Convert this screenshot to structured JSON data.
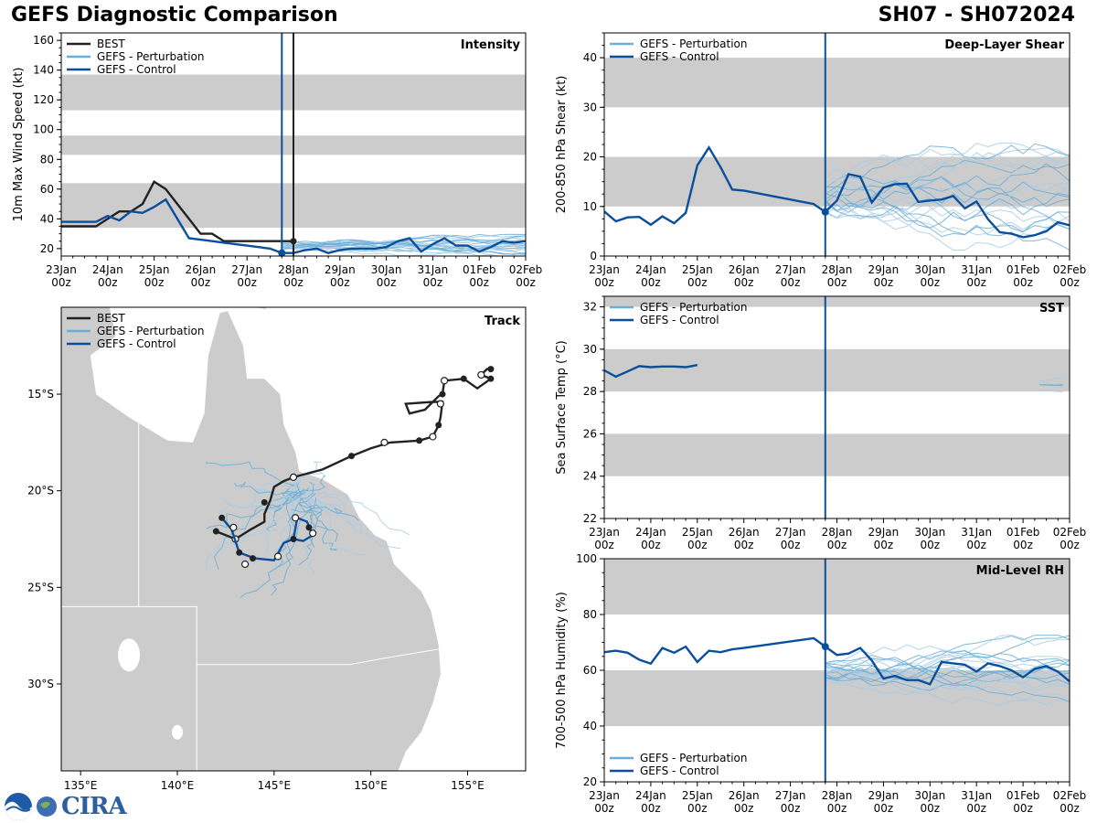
{
  "header": {
    "title": "GEFS Diagnostic Comparison",
    "storm_id": "SH07 - SH072024"
  },
  "logo": {
    "label": "CIRA",
    "agency_seal": "NOAA"
  },
  "time_axis": {
    "tick_labels_day": [
      "23Jan",
      "24Jan",
      "25Jan",
      "26Jan",
      "27Jan",
      "28Jan",
      "29Jan",
      "30Jan",
      "31Jan",
      "01Feb",
      "02Feb"
    ],
    "tick_labels_hour": "00z",
    "init_day": 4.75
  },
  "legend_labels": {
    "best": "BEST",
    "perturbation": "GEFS - Perturbation",
    "control": "GEFS - Control"
  },
  "colors": {
    "best": "#222222",
    "control": "#0b4f9c",
    "perturbation": "#6baed6",
    "perturbation_light": "#a9cde6",
    "band": "#cccccc",
    "land": "#cccccc"
  },
  "chart_data": [
    {
      "id": "intensity",
      "type": "line",
      "title": "Intensity",
      "ylabel": "10m Max Wind Speed (kt)",
      "xlim_days": [
        0,
        10
      ],
      "ylim": [
        15,
        165
      ],
      "yticks": [
        20,
        40,
        60,
        80,
        100,
        120,
        140,
        160
      ],
      "bands": [
        [
          34,
          64
        ],
        [
          83,
          96
        ],
        [
          113,
          137
        ]
      ],
      "legend": [
        "best",
        "perturbation",
        "control"
      ],
      "vlines": [
        {
          "x": 4.75,
          "color": "control"
        },
        {
          "x": 5.0,
          "color": "best"
        }
      ],
      "best": {
        "x": [
          0,
          0.5,
          0.75,
          1.0,
          1.25,
          1.5,
          1.75,
          2.0,
          2.25,
          2.5,
          2.75,
          3.0,
          3.25,
          3.5,
          3.75,
          4.0,
          4.25,
          4.5,
          4.75,
          5.0
        ],
        "y": [
          35,
          35,
          35,
          40,
          45,
          45,
          50,
          65,
          60,
          50,
          40,
          30,
          30,
          25,
          25,
          25,
          25,
          25,
          25,
          25
        ]
      },
      "control": {
        "x": [
          0,
          0.25,
          0.5,
          0.75,
          1.0,
          1.25,
          1.5,
          1.75,
          2.0,
          2.25,
          2.5,
          2.75,
          3.0,
          3.25,
          3.5,
          3.75,
          4.0,
          4.25,
          4.5,
          4.75,
          5.0,
          5.25,
          5.5,
          5.75,
          6.0,
          6.25,
          6.5,
          6.75,
          7.0,
          7.25,
          7.5,
          7.75,
          8.0,
          8.25,
          8.5,
          8.75,
          9.0,
          9.25,
          9.5,
          9.75,
          10.0
        ],
        "y": [
          38,
          38,
          38,
          38,
          42,
          39,
          45,
          44,
          48,
          53,
          40,
          27,
          26,
          25,
          24,
          23,
          22,
          21,
          20,
          17,
          17,
          19,
          20,
          17,
          19,
          20,
          20,
          20,
          21,
          25,
          27,
          18,
          23,
          27,
          22,
          22,
          18,
          21,
          25,
          24,
          25
        ]
      },
      "perturbation_spread": {
        "x_start": 4.75,
        "x_end": 10.0,
        "center": 22,
        "spread": 5,
        "members": 20
      }
    },
    {
      "id": "shear",
      "type": "line",
      "title": "Deep-Layer Shear",
      "ylabel": "200-850 hPa Shear (kt)",
      "xlim_days": [
        0,
        10
      ],
      "ylim": [
        0,
        45
      ],
      "yticks": [
        0,
        10,
        20,
        30,
        40
      ],
      "bands": [
        [
          10,
          20
        ],
        [
          30,
          40
        ]
      ],
      "legend": [
        "perturbation",
        "control"
      ],
      "vlines": [
        {
          "x": 4.75,
          "color": "control"
        }
      ],
      "control": {
        "x": [
          0,
          0.25,
          0.5,
          0.75,
          1.0,
          1.25,
          1.5,
          1.75,
          2.0,
          2.25,
          2.5,
          2.75,
          3.0,
          4.5,
          4.75,
          5.0,
          5.25,
          5.5,
          5.75,
          6.0,
          6.25,
          6.5,
          6.75,
          7.0,
          7.25,
          7.5,
          7.75,
          8.0,
          8.25,
          8.5,
          8.75,
          9.0,
          9.25,
          9.5,
          9.75,
          10.0
        ],
        "y": [
          9,
          7,
          7.8,
          7.9,
          6.3,
          8,
          6.6,
          8.7,
          18.3,
          21.9,
          17.9,
          13.4,
          13.2,
          10.5,
          8.9,
          11.2,
          16.5,
          16,
          10.8,
          13.8,
          14.5,
          14.6,
          10.9,
          11.2,
          11.4,
          12.1,
          9.6,
          11,
          7.4,
          4.8,
          4.5,
          3.8,
          4.2,
          5,
          6.8,
          6.2
        ]
      },
      "perturbation_spread": {
        "x_start": 4.75,
        "x_end": 10.0,
        "center": 12,
        "spread": 6,
        "members": 20
      }
    },
    {
      "id": "sst",
      "type": "line",
      "title": "SST",
      "ylabel": "Sea Surface Temp (°C)",
      "xlim_days": [
        0,
        10
      ],
      "ylim": [
        22,
        32.5
      ],
      "yticks": [
        22,
        24,
        26,
        28,
        30,
        32
      ],
      "bands": [
        [
          24,
          26
        ],
        [
          28,
          30
        ],
        [
          32,
          34
        ]
      ],
      "legend": [
        "perturbation",
        "control"
      ],
      "vlines": [
        {
          "x": 4.75,
          "color": "control"
        }
      ],
      "control": {
        "x": [
          0,
          0.25,
          0.5,
          0.75,
          1.0,
          1.25,
          1.5,
          1.75,
          2.0
        ],
        "y": [
          29.0,
          28.7,
          28.95,
          29.2,
          29.15,
          29.18,
          29.18,
          29.15,
          29.25
        ]
      },
      "perturbation_tail": {
        "x_start": 9.35,
        "x_end": 10.0,
        "center": 28.3,
        "spread": 0.4,
        "members": 5
      }
    },
    {
      "id": "rh",
      "type": "line",
      "title": "Mid-Level RH",
      "ylabel": "700-500 hPa Humidity (%)",
      "xlim_days": [
        0,
        10
      ],
      "ylim": [
        20,
        100
      ],
      "yticks": [
        20,
        40,
        60,
        80,
        100
      ],
      "bands": [
        [
          40,
          60
        ],
        [
          80,
          100
        ]
      ],
      "legend": [
        "perturbation",
        "control"
      ],
      "legend_position": "lower-left",
      "vlines": [
        {
          "x": 4.75,
          "color": "control"
        }
      ],
      "control": {
        "x": [
          0,
          0.25,
          0.5,
          0.75,
          1.0,
          1.25,
          1.5,
          1.75,
          2.0,
          2.25,
          2.5,
          2.75,
          3.0,
          4.5,
          4.75,
          5.0,
          5.25,
          5.5,
          5.75,
          6.0,
          6.25,
          6.5,
          6.75,
          7.0,
          7.25,
          7.5,
          7.75,
          8.0,
          8.25,
          8.5,
          8.75,
          9.0,
          9.25,
          9.5,
          9.75,
          10.0
        ],
        "y": [
          66.5,
          67,
          66.3,
          63.8,
          62.4,
          68,
          66.3,
          68.5,
          63,
          67,
          66.5,
          67.5,
          68,
          71.5,
          68.5,
          65.5,
          66,
          68,
          63.5,
          57,
          58,
          56.5,
          56.5,
          55,
          63,
          62.5,
          62,
          59.5,
          62.5,
          61.5,
          60,
          57.5,
          60.5,
          61.5,
          59.5,
          56
        ]
      },
      "perturbation_spread": {
        "x_start": 4.75,
        "x_end": 10.0,
        "center": 60,
        "spread": 7,
        "members": 20
      }
    },
    {
      "id": "track",
      "type": "scatter",
      "title": "Track",
      "lon_range": [
        134,
        158
      ],
      "lat_range": [
        -34.5,
        -10.5
      ],
      "lon_ticks": [
        135,
        140,
        145,
        150,
        155
      ],
      "lon_tick_labels": [
        "135°E",
        "140°E",
        "145°E",
        "150°E",
        "155°E"
      ],
      "lat_ticks": [
        -15,
        -20,
        -25,
        -30
      ],
      "lat_tick_labels": [
        "15°S",
        "20°S",
        "25°S",
        "30°S"
      ],
      "legend": [
        "best",
        "perturbation",
        "control"
      ],
      "best_track": [
        [
          156.2,
          -13.7
        ],
        [
          156.0,
          -13.7
        ],
        [
          155.7,
          -14.0
        ],
        [
          156.2,
          -14.2
        ],
        [
          155.5,
          -14.7
        ],
        [
          154.8,
          -14.2
        ],
        [
          153.8,
          -14.3
        ],
        [
          153.7,
          -15.0
        ],
        [
          153.5,
          -15.1
        ],
        [
          152.8,
          -15.8
        ],
        [
          152.0,
          -16.0
        ],
        [
          151.8,
          -15.5
        ],
        [
          153.2,
          -15.4
        ],
        [
          153.7,
          -15.4
        ],
        [
          153.6,
          -16.2
        ],
        [
          153.5,
          -16.6
        ],
        [
          153.2,
          -17.2
        ],
        [
          152.5,
          -17.4
        ],
        [
          151.0,
          -17.5
        ],
        [
          150.0,
          -17.8
        ],
        [
          149.0,
          -18.2
        ],
        [
          147.5,
          -18.9
        ],
        [
          146.0,
          -19.3
        ],
        [
          145.5,
          -19.5
        ],
        [
          145.0,
          -19.8
        ],
        [
          144.8,
          -20.5
        ],
        [
          144.5,
          -21.2
        ],
        [
          144.5,
          -21.6
        ],
        [
          143.8,
          -22.0
        ],
        [
          143.0,
          -22.5
        ],
        [
          142.5,
          -22.3
        ],
        [
          142.0,
          -22.1
        ]
      ],
      "best_points_filled": [
        [
          156.2,
          -13.7
        ],
        [
          156.2,
          -14.2
        ],
        [
          154.8,
          -14.2
        ],
        [
          153.7,
          -15.0
        ],
        [
          153.5,
          -16.6
        ],
        [
          152.5,
          -17.4
        ],
        [
          149.0,
          -18.2
        ],
        [
          144.5,
          -20.6
        ],
        [
          142.0,
          -22.1
        ]
      ],
      "best_points_open": [
        [
          155.7,
          -14.0
        ],
        [
          153.8,
          -14.3
        ],
        [
          153.6,
          -15.5
        ],
        [
          153.2,
          -17.2
        ],
        [
          150.7,
          -17.5
        ],
        [
          146.0,
          -19.3
        ],
        [
          143.0,
          -22.5
        ]
      ],
      "control_track": [
        [
          142.3,
          -21.4
        ],
        [
          142.8,
          -22.0
        ],
        [
          143.2,
          -23.2
        ],
        [
          144.0,
          -23.5
        ],
        [
          145.0,
          -23.6
        ],
        [
          145.5,
          -22.7
        ],
        [
          146.0,
          -22.5
        ],
        [
          146.5,
          -22.6
        ],
        [
          147.0,
          -22.3
        ],
        [
          146.7,
          -21.6
        ],
        [
          146.2,
          -21.4
        ],
        [
          146.0,
          -22.5
        ]
      ],
      "control_points_filled": [
        [
          142.3,
          -21.4
        ],
        [
          143.2,
          -23.2
        ],
        [
          143.9,
          -23.5
        ],
        [
          146.0,
          -22.5
        ],
        [
          146.8,
          -21.9
        ]
      ],
      "control_points_open": [
        [
          142.9,
          -21.9
        ],
        [
          143.5,
          -23.8
        ],
        [
          145.2,
          -23.4
        ],
        [
          146.1,
          -21.4
        ],
        [
          147.0,
          -22.2
        ]
      ],
      "perturbation_region": {
        "lon_center": 144.5,
        "lat_center": -22.5,
        "lon_spread": 4,
        "lat_spread": 2.5,
        "members": 30
      }
    }
  ]
}
